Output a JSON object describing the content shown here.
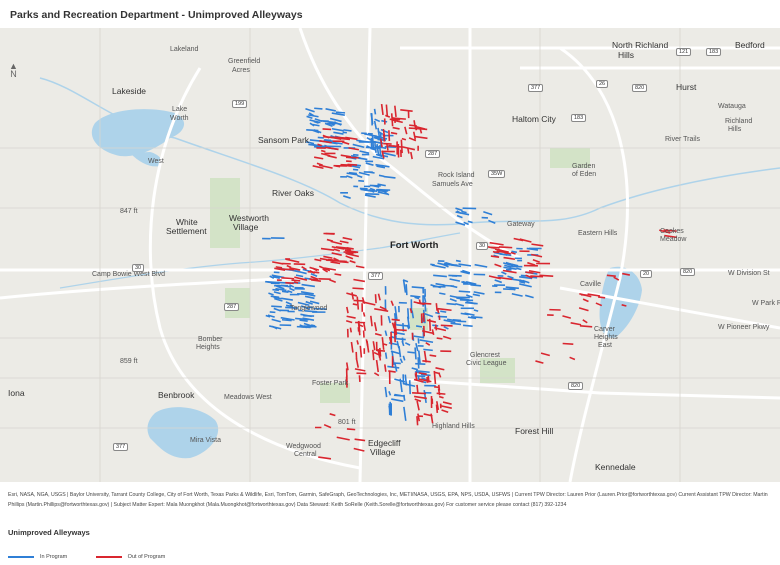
{
  "title": "Parks and Recreation Department - Unimproved Alleyways",
  "colors": {
    "in_program": "#2f7fd6",
    "out_of_program": "#d9262f",
    "water": "#aed3ea",
    "park": "#d3e3c7",
    "road": "#ffffff",
    "land": "#ecebe6"
  },
  "map": {
    "compass_label": "N",
    "places": [
      {
        "label": "North Richland",
        "cls": "major"
      },
      {
        "label": "Hills",
        "cls": "major"
      },
      {
        "label": "Bedford",
        "cls": "major"
      },
      {
        "label": "Lakeland",
        "cls": ""
      },
      {
        "label": "Greenfield",
        "cls": ""
      },
      {
        "label": "Acres",
        "cls": ""
      },
      {
        "label": "Lakeside",
        "cls": "major"
      },
      {
        "label": "Lake",
        "cls": ""
      },
      {
        "label": "Worth",
        "cls": ""
      },
      {
        "label": "Haltom City",
        "cls": "major"
      },
      {
        "label": "Hurst",
        "cls": "major"
      },
      {
        "label": "Sansom Park",
        "cls": "major"
      },
      {
        "label": "Richland",
        "cls": ""
      },
      {
        "label": "Hills",
        "cls": ""
      },
      {
        "label": "Watauga",
        "cls": ""
      },
      {
        "label": "Garden",
        "cls": ""
      },
      {
        "label": "of Eden",
        "cls": ""
      },
      {
        "label": "River Trails",
        "cls": ""
      },
      {
        "label": "West",
        "cls": ""
      },
      {
        "label": "River Oaks",
        "cls": "major"
      },
      {
        "label": "Rock Island",
        "cls": ""
      },
      {
        "label": "Samuels Ave",
        "cls": ""
      },
      {
        "label": "White",
        "cls": "major"
      },
      {
        "label": "Settlement",
        "cls": "major"
      },
      {
        "label": "Westworth",
        "cls": "major"
      },
      {
        "label": "Village",
        "cls": "major"
      },
      {
        "label": "Fort Worth",
        "cls": "city"
      },
      {
        "label": "Gateway",
        "cls": ""
      },
      {
        "label": "Eastern Hills",
        "cls": ""
      },
      {
        "label": "Cookes",
        "cls": ""
      },
      {
        "label": "Meadow",
        "cls": ""
      },
      {
        "label": "Camp Bowie West Blvd",
        "cls": ""
      },
      {
        "label": "Caville",
        "cls": ""
      },
      {
        "label": "W Division St",
        "cls": ""
      },
      {
        "label": "W Park Row",
        "cls": ""
      },
      {
        "label": "W Pioneer Pkwy",
        "cls": ""
      },
      {
        "label": "Tanglewood",
        "cls": ""
      },
      {
        "label": "Bomber",
        "cls": ""
      },
      {
        "label": "Heights",
        "cls": ""
      },
      {
        "label": "Carver",
        "cls": ""
      },
      {
        "label": "Heights",
        "cls": ""
      },
      {
        "label": "East",
        "cls": ""
      },
      {
        "label": "Glencrest",
        "cls": ""
      },
      {
        "label": "Civic League",
        "cls": ""
      },
      {
        "label": "Iona",
        "cls": "major"
      },
      {
        "label": "Benbrook",
        "cls": "major"
      },
      {
        "label": "Foster Park",
        "cls": ""
      },
      {
        "label": "Meadows West",
        "cls": ""
      },
      {
        "label": "Highland Hills",
        "cls": ""
      },
      {
        "label": "Forest Hill",
        "cls": "major"
      },
      {
        "label": "Mira Vista",
        "cls": ""
      },
      {
        "label": "Wedgwood",
        "cls": ""
      },
      {
        "label": "Central",
        "cls": ""
      },
      {
        "label": "Edgecliff",
        "cls": "major"
      },
      {
        "label": "Village",
        "cls": "major"
      },
      {
        "label": "Kennedale",
        "cls": "major"
      },
      {
        "label": "847 ft",
        "cls": ""
      },
      {
        "label": "859 ft",
        "cls": ""
      },
      {
        "label": "801 ft",
        "cls": ""
      }
    ],
    "shields": [
      "121",
      "183",
      "377",
      "26",
      "820",
      "199",
      "287",
      "183",
      "35W",
      "30",
      "30",
      "377",
      "820",
      "20",
      "287",
      "377",
      "820"
    ]
  },
  "attribution": "Esri, NASA, NGA, USGS | Baylor University, Tarrant County College, City of Fort Worth, Texas Parks & Wildlife, Esri, TomTom, Garmin, SafeGraph, GeoTechnologies, Inc, METI/NASA, USGS, EPA, NPS, USDA, USFWS | Current TPW Director: Lauren Prior (Lauren.Prior@fortworthtexas.gov) Current Assistant TPW Director: Martin Phillips (Martin.Phillips@fortworthtexas.gov) | Subject Matter Expert: Mala Muongkhot (Mala.Muongkhot@fortworthtexas.gov) Data Steward: Keith SoRelle (Keith.Sorelle@fortworthtexas.gov) For customer service please contact (817) 392-1234",
  "legend": {
    "title": "Unimproved Alleyways",
    "in_program": "In Program",
    "out_of_program": "Out of Program"
  }
}
